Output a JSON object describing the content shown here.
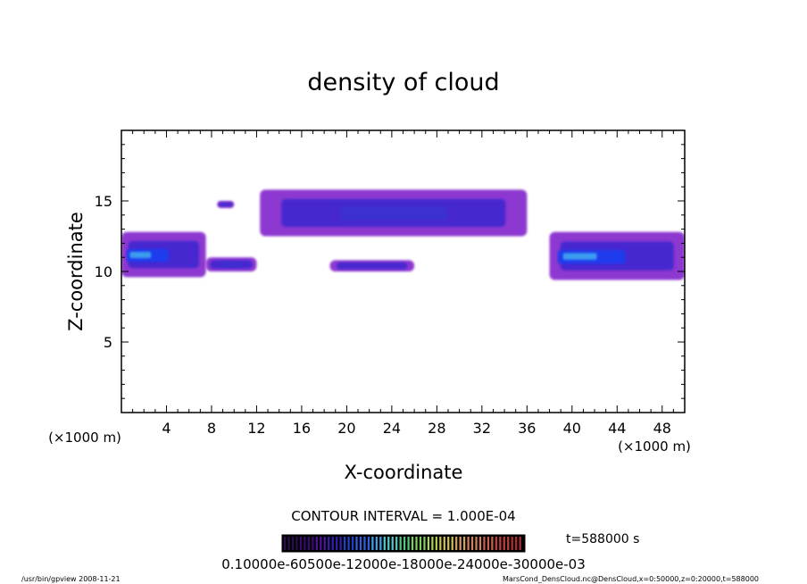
{
  "chart_data": {
    "type": "heatmap",
    "title": "density of cloud",
    "xlabel": "X-coordinate",
    "ylabel": "Z-coordinate",
    "x_unit_left": "(×1000 m)",
    "x_unit_right": "(×1000 m)",
    "xlim": [
      0,
      50
    ],
    "ylim": [
      0,
      20
    ],
    "x_ticks": [
      4,
      8,
      12,
      16,
      20,
      24,
      28,
      32,
      36,
      40,
      44,
      48
    ],
    "y_ticks": [
      5,
      10,
      15
    ],
    "grid": false,
    "contour_interval": "CONTOUR INTERVAL = 1.000E-04",
    "time_label": "t=588000 s",
    "colorbar_labels": "0.10000e-60500e-12000e-18000e-24000e-30000e-03",
    "colormap": [
      "#2a0e50",
      "#3a0a70",
      "#5010a0",
      "#3020b0",
      "#2040c8",
      "#3060e0",
      "#40a0e8",
      "#50c8c8",
      "#50c880",
      "#80d060",
      "#b0d050",
      "#d0c050",
      "#d8a060",
      "#d08060",
      "#c86050",
      "#c04040",
      "#b03030"
    ],
    "cloud_regions": [
      {
        "x_range": [
          0.0,
          7.5
        ],
        "z_range": [
          9.6,
          12.8
        ],
        "peak_level": "high",
        "color": "#1a3cf0"
      },
      {
        "x_range": [
          7.5,
          12.0
        ],
        "z_range": [
          10.0,
          11.0
        ],
        "peak_level": "medium",
        "color": "#3a30d0"
      },
      {
        "x_range": [
          8.5,
          10.0
        ],
        "z_range": [
          14.5,
          15.0
        ],
        "peak_level": "low",
        "color": "#7010c0"
      },
      {
        "x_range": [
          12.3,
          36.0
        ],
        "z_range": [
          12.5,
          15.8
        ],
        "peak_level": "medium",
        "color": "#3a30d0"
      },
      {
        "x_range": [
          18.5,
          26.0
        ],
        "z_range": [
          10.0,
          10.8
        ],
        "peak_level": "low",
        "color": "#5a20c8"
      },
      {
        "x_range": [
          38.0,
          50.0
        ],
        "z_range": [
          9.4,
          12.8
        ],
        "peak_level": "high",
        "color": "#1a3cf0"
      }
    ]
  },
  "footer": {
    "left": "/usr/bin/gpview   2008-11-21",
    "right": "MarsCond_DensCloud.nc@DensCloud,x=0:50000,z=0:20000,t=588000"
  }
}
